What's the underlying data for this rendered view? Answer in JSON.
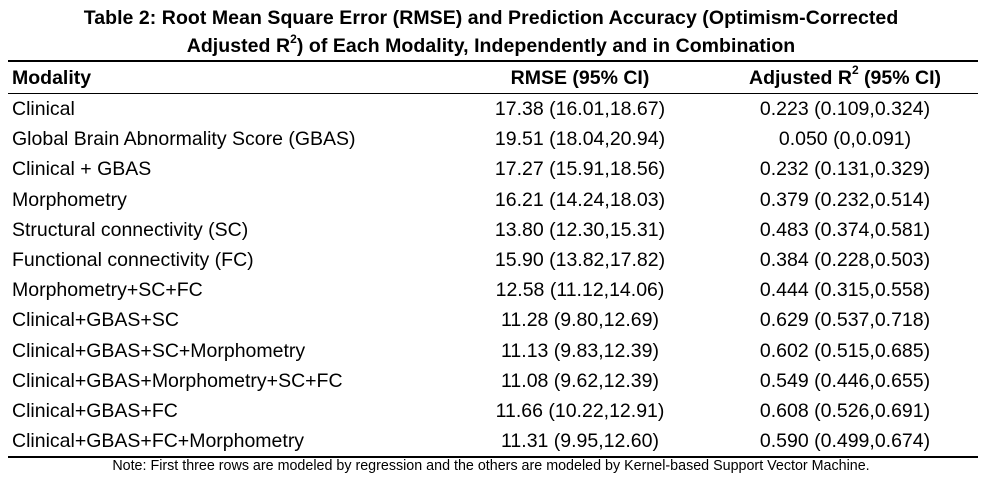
{
  "caption": {
    "line1": "Table 2: Root Mean Square Error (RMSE) and Prediction Accuracy (Optimism-Corrected",
    "line2_prefix": "Adjusted R",
    "line2_sup": "2",
    "line2_suffix": ") of Each Modality, Independently and in Combination"
  },
  "table": {
    "headers": {
      "modality": "Modality",
      "rmse": "RMSE (95% CI)",
      "r2_prefix": "Adjusted R",
      "r2_sup": "2",
      "r2_suffix": " (95% CI)"
    },
    "rows": [
      {
        "modality": "Clinical",
        "rmse": "17.38 (16.01,18.67)",
        "r2": "0.223 (0.109,0.324)"
      },
      {
        "modality": "Global Brain Abnormality Score (GBAS)",
        "rmse": "19.51 (18.04,20.94)",
        "r2": "0.050 (0,0.091)"
      },
      {
        "modality": "Clinical + GBAS",
        "rmse": "17.27 (15.91,18.56)",
        "r2": "0.232 (0.131,0.329)"
      },
      {
        "modality": "Morphometry",
        "rmse": "16.21 (14.24,18.03)",
        "r2": "0.379 (0.232,0.514)"
      },
      {
        "modality": "Structural connectivity (SC)",
        "rmse": "13.80 (12.30,15.31)",
        "r2": "0.483 (0.374,0.581)"
      },
      {
        "modality": "Functional connectivity (FC)",
        "rmse": "15.90 (13.82,17.82)",
        "r2": "0.384 (0.228,0.503)"
      },
      {
        "modality": "Morphometry+SC+FC",
        "rmse": "12.58 (11.12,14.06)",
        "r2": "0.444 (0.315,0.558)"
      },
      {
        "modality": "Clinical+GBAS+SC",
        "rmse": "11.28 (9.80,12.69)",
        "r2": "0.629 (0.537,0.718)"
      },
      {
        "modality": "Clinical+GBAS+SC+Morphometry",
        "rmse": "11.13 (9.83,12.39)",
        "r2": "0.602 (0.515,0.685)"
      },
      {
        "modality": "Clinical+GBAS+Morphometry+SC+FC",
        "rmse": "11.08 (9.62,12.39)",
        "r2": "0.549 (0.446,0.655)"
      },
      {
        "modality": "Clinical+GBAS+FC",
        "rmse": "11.66 (10.22,12.91)",
        "r2": "0.608 (0.526,0.691)"
      },
      {
        "modality": "Clinical+GBAS+FC+Morphometry",
        "rmse": "11.31 (9.95,12.60)",
        "r2": "0.590 (0.499,0.674)"
      }
    ]
  },
  "note": "Note: First three rows are modeled by regression and the others are modeled by Kernel-based Support Vector Machine."
}
